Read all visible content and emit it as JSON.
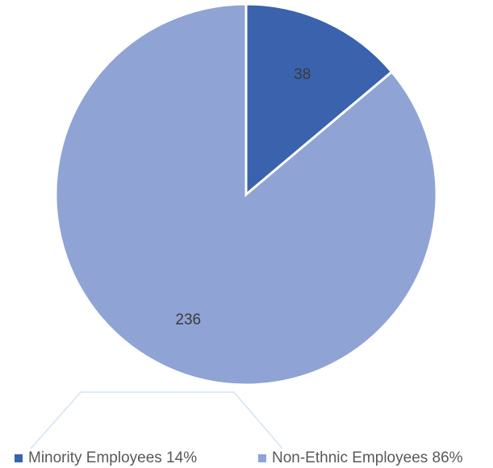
{
  "chart_data": {
    "type": "pie",
    "title": "",
    "slices": [
      {
        "label": "Minority Employees",
        "value": 38,
        "percent": "14%",
        "color": "#3a62ad"
      },
      {
        "label": "Non-Ethnic Employees",
        "value": 236,
        "percent": "86%",
        "color": "#8fa3d5"
      }
    ],
    "legend_position": "bottom"
  },
  "legend": [
    {
      "text": "Minority Employees 14%",
      "color": "#3a62ad"
    },
    {
      "text": "Non-Ethnic Employees 86%",
      "color": "#8fa3d5"
    }
  ]
}
